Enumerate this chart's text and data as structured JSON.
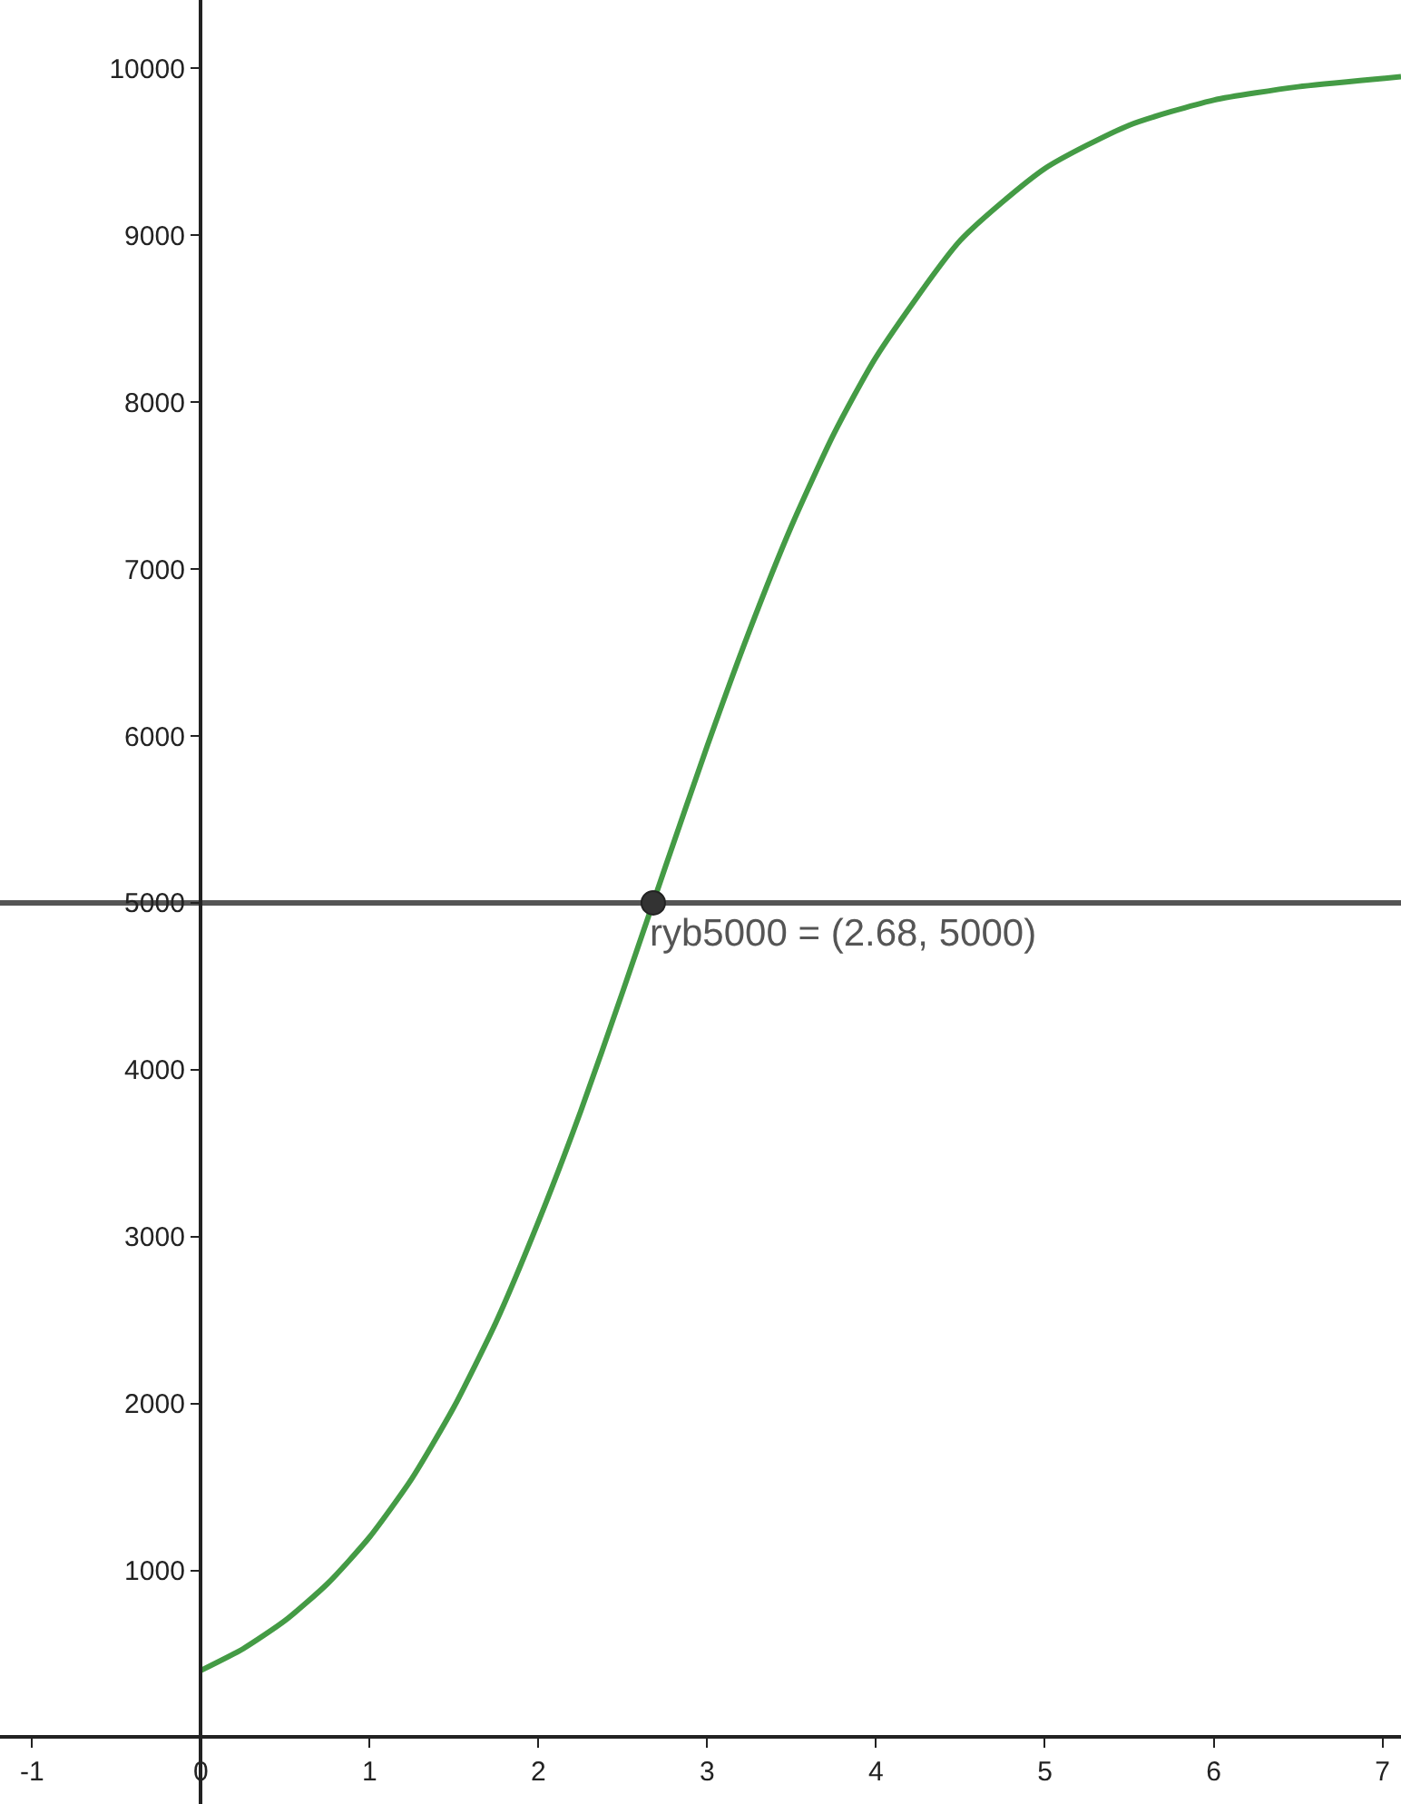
{
  "chart_data": {
    "type": "line",
    "series": [
      {
        "color": "#449b45",
        "x": [
          0,
          0.25,
          0.5,
          0.75,
          1,
          1.25,
          1.5,
          1.75,
          2,
          2.25,
          2.5,
          2.75,
          3,
          3.25,
          3.5,
          3.75,
          4,
          4.5,
          5,
          5.5,
          6,
          6.5,
          7,
          7.11
        ],
        "values": [
          400,
          530,
          700,
          920,
          1200,
          1550,
          1980,
          2490,
          3090,
          3750,
          4470,
          5210,
          5940,
          6630,
          7260,
          7810,
          8270,
          8970,
          9400,
          9660,
          9810,
          9890,
          9940,
          9950
        ]
      },
      {
        "type": "scatter",
        "color": "#333333",
        "x": [
          2.68
        ],
        "values": [
          5000
        ]
      }
    ],
    "xlim": [
      -1.19,
      7.11
    ],
    "ylim": [
      -400,
      10410
    ],
    "xticks": [
      -1,
      0,
      1,
      2,
      3,
      4,
      5,
      6,
      7
    ],
    "yticks": [
      1000,
      2000,
      3000,
      4000,
      5000,
      6000,
      7000,
      8000,
      9000,
      10000
    ],
    "ref_lines": [
      {
        "axis": "y",
        "value": 5000,
        "color": "#555555"
      }
    ],
    "annotations": [
      {
        "text": "ryb5000 = (2.68, 5000)",
        "x": 2.68,
        "y": 5000
      }
    ]
  }
}
